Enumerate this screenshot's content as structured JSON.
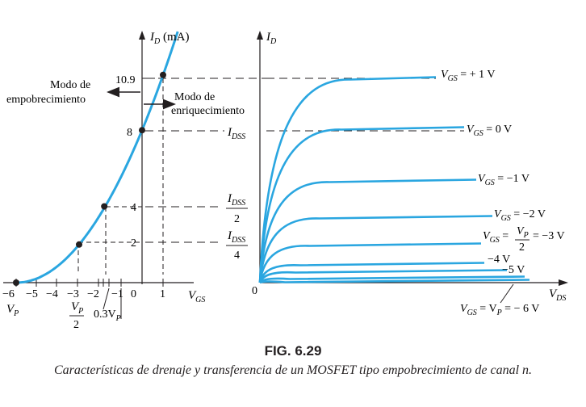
{
  "figure": {
    "number": "FIG. 6.29",
    "caption": "Características de drenaje y transferencia de un MOSFET tipo empobrecimiento de canal n."
  },
  "colors": {
    "curve": "#2aa6e0",
    "ink": "#231f20"
  },
  "transfer": {
    "y_axis_label": "I",
    "y_axis_sub": "D",
    "y_axis_unit": " (mA)",
    "x_axis_label": "V",
    "x_axis_sub": "GS",
    "y_ticks": [
      "10.9",
      "8",
      "4",
      "2"
    ],
    "x_ticks": [
      "−6",
      "−5",
      "−4",
      "−3",
      "−2",
      "−1",
      "0",
      "1"
    ],
    "vp_label": "V",
    "vp_sub": "P",
    "vp_half_num": "V",
    "vp_half_sub": "P",
    "vp_half_den": "2",
    "vp_03": "0.3V",
    "vp_03_sub": "P",
    "depletion_label_1": "Modo de",
    "depletion_label_2": "empobrecimiento",
    "enhancement_label_1": "Modo de",
    "enhancement_label_2": "enriquecimiento",
    "points": [
      {
        "vgs": -6,
        "id": 0
      },
      {
        "vgs": -3,
        "id": 2
      },
      {
        "vgs": -1.8,
        "id": 4
      },
      {
        "vgs": 0,
        "id": 8
      },
      {
        "vgs": 1,
        "id": 10.9
      }
    ]
  },
  "drain": {
    "y_axis_label": "I",
    "y_axis_sub": "D",
    "x_axis_label": "V",
    "x_axis_sub": "DS",
    "origin": "0",
    "idss": "I",
    "idss_sub": "DSS",
    "idss_half_den": "2",
    "idss_quarter_den": "4",
    "curve_labels": [
      {
        "text": "V",
        "sub": "GS",
        "rest": " = + 1 V"
      },
      {
        "text": "V",
        "sub": "GS",
        "rest": " = 0 V"
      },
      {
        "text": "V",
        "sub": "GS",
        "rest": " = −1 V"
      },
      {
        "text": "V",
        "sub": "GS",
        "rest": " = −2  V"
      },
      {
        "text": "V",
        "sub": "GS",
        "rest": " = "
      },
      {
        "text": "−4 V"
      },
      {
        "text": "−5 V"
      }
    ],
    "vgs_minus3_frac_num": "V",
    "vgs_minus3_frac_sub": "P",
    "vgs_minus3_frac_den": "2",
    "vgs_minus3_rest": " = −3 V",
    "bottom_label": "V",
    "bottom_label_sub": "GS",
    "bottom_label_rest": " = V",
    "bottom_label_sub2": "P",
    "bottom_label_rest2": " = − 6 V"
  }
}
